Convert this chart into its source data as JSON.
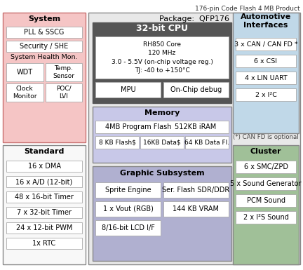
{
  "title": "176-pin Code Flash 4 MB Product",
  "bg_color": "#ffffff",
  "system_box": {
    "label": "System",
    "color": "#f5c5c5",
    "border": "#c87070",
    "items": [
      "PLL & SSCG",
      "Security / SHE"
    ],
    "health_label": "System Health Mon.",
    "sub_items": [
      [
        "WDT",
        "Temp.\nSensor"
      ],
      [
        "Clock\nMonitor",
        "POC/\nLVI"
      ]
    ]
  },
  "standard_box": {
    "label": "Standard",
    "color": "#f5f5f5",
    "border": "#888888",
    "items": [
      "16 x DMA",
      "16 x A/D (12-bit)",
      "48 x 16-bit Timer",
      "7 x 32-bit Timer",
      "24 x 12-bit PWM",
      "1x RTC"
    ]
  },
  "package_label": "Package:  QFP176",
  "package_color": "#e8e8e8",
  "cpu_box": {
    "label": "32-bit CPU",
    "header_color": "#555555",
    "body_color": "#f0f0f0",
    "core_text": "RH850 Core\n120 MHz\n3.0 - 5.5V (on-chip voltage reg.)\nTJ: -40 to +150°C",
    "sub_items": [
      "MPU",
      "On-Chip debug"
    ]
  },
  "memory_box": {
    "label": "Memory",
    "color": "#c8c8e8",
    "border": "#888888",
    "row1": [
      "4MB Program Flash",
      "512KB iRAM"
    ],
    "row2": [
      "8 KB Flash$",
      "16KB Data$",
      "64 KB Data Fl."
    ]
  },
  "graphic_box": {
    "label": "Graphic Subsystem",
    "color": "#b0b0d0",
    "border": "#888888",
    "row1": [
      "Sprite Engine",
      "Ser. Flash SDR/DDR"
    ],
    "row2": [
      "1 x Vout (RGB)",
      "144 KB VRAM"
    ],
    "row3": "8/16-bit LCD I/F"
  },
  "auto_box": {
    "label": "Automotive\nInterfaces",
    "color": "#c0d8e8",
    "border": "#888888",
    "items": [
      "3 x CAN / CAN FD *",
      "6 x CSI",
      "4 x LIN UART",
      "2 x I²C"
    ],
    "note": "(*) CAN FD is optional"
  },
  "cluster_box": {
    "label": "Cluster",
    "color": "#a0c098",
    "border": "#888888",
    "items": [
      "6 x SMC/ZPD",
      "5 x Sound Generator",
      "PCM Sound",
      "2 x I²S Sound"
    ]
  }
}
